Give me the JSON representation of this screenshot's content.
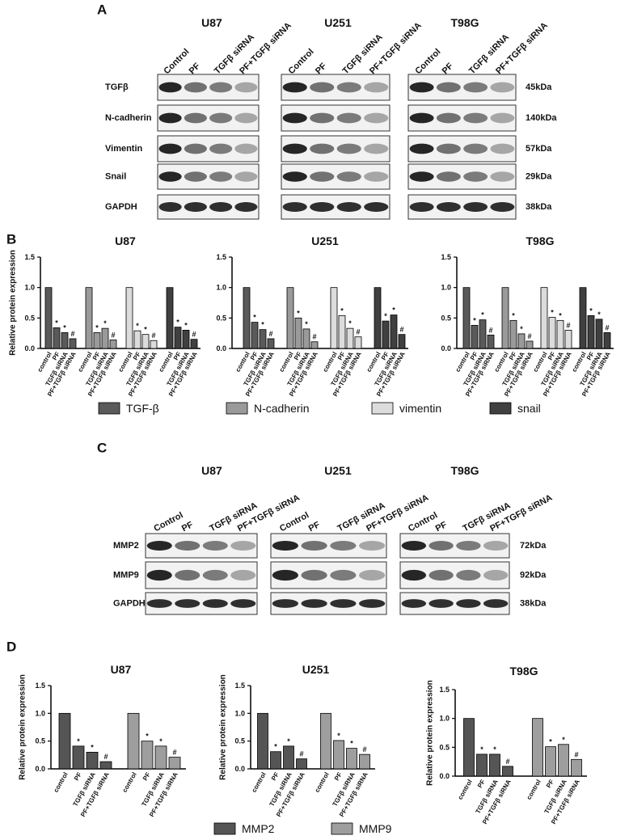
{
  "panel_labels": [
    "A",
    "B",
    "C",
    "D"
  ],
  "blots": [
    {
      "cell_lines": [
        "U87",
        "U251",
        "T98G"
      ],
      "lanes": [
        "Control",
        "PF",
        "TGFβ siRNA",
        "PF+TGFβ siRNA"
      ],
      "rows": [
        {
          "protein": "TGFβ",
          "size": "45kDa"
        },
        {
          "protein": "N-cadherin",
          "size": "140kDa"
        },
        {
          "protein": "Vimentin",
          "size": "57kDa"
        },
        {
          "protein": "Snail",
          "size": "29kDa"
        },
        {
          "protein": "GAPDH",
          "size": "38kDa"
        }
      ]
    },
    {
      "cell_lines": [
        "U87",
        "U251",
        "T98G"
      ],
      "lanes": [
        "Control",
        "PF",
        "TGFβ siRNA",
        "PF+TGFβ siRNA"
      ],
      "rows": [
        {
          "protein": "MMP2",
          "size": "72kDa"
        },
        {
          "protein": "MMP9",
          "size": "92kDa"
        },
        {
          "protein": "GAPDH",
          "size": "38kDa"
        }
      ]
    }
  ],
  "chart_data": [
    {
      "type": "bar",
      "title": "U87",
      "y_label": "Relative protein expression",
      "categories": [
        "control",
        "PF",
        "TGFβ siRNA",
        "PF+TGFβ siRNA"
      ],
      "series": [
        {
          "name": "TGF-β",
          "color": "#5a5a5a",
          "values": [
            1.0,
            0.34,
            0.26,
            0.16
          ],
          "markers": [
            null,
            "*",
            "*",
            "#"
          ]
        },
        {
          "name": "N-cadherin",
          "color": "#9a9a9a",
          "values": [
            1.0,
            0.26,
            0.33,
            0.14
          ],
          "markers": [
            null,
            "*",
            "*",
            "#"
          ]
        },
        {
          "name": "vimentin",
          "color": "#dcdcdc",
          "values": [
            1.0,
            0.29,
            0.23,
            0.13
          ],
          "markers": [
            null,
            "*",
            "*",
            "#"
          ]
        },
        {
          "name": "snail",
          "color": "#404040",
          "values": [
            1.0,
            0.35,
            0.3,
            0.15
          ],
          "markers": [
            null,
            "*",
            "*",
            "#"
          ]
        }
      ],
      "ylim": [
        0,
        1.5
      ],
      "yticks": [
        {
          "value": 0,
          "label": "0.0"
        },
        0.5,
        {
          "value": 1,
          "label": "1.0"
        },
        1.5
      ]
    },
    {
      "type": "bar",
      "title": "U251",
      "categories": [
        "control",
        "PF",
        "TGFβ siRNA",
        "PF+TGFβ siRNA"
      ],
      "series": [
        {
          "name": "TGF-β",
          "color": "#5a5a5a",
          "values": [
            1.0,
            0.43,
            0.31,
            0.16
          ],
          "markers": [
            null,
            "*",
            "*",
            "#"
          ]
        },
        {
          "name": "N-cadherin",
          "color": "#9a9a9a",
          "values": [
            1.0,
            0.5,
            0.32,
            0.11
          ],
          "markers": [
            null,
            "*",
            "*",
            "#"
          ]
        },
        {
          "name": "vimentin",
          "color": "#dcdcdc",
          "values": [
            1.0,
            0.54,
            0.33,
            0.19
          ],
          "markers": [
            null,
            "*",
            "*",
            "#"
          ]
        },
        {
          "name": "snail",
          "color": "#404040",
          "values": [
            1.0,
            0.45,
            0.55,
            0.23
          ],
          "markers": [
            null,
            "*",
            "*",
            "#"
          ]
        }
      ],
      "ylim": [
        0,
        1.5
      ],
      "yticks": [
        {
          "value": 0,
          "label": "0.0"
        },
        0.5,
        {
          "value": 1,
          "label": "1.0"
        },
        1.5
      ]
    },
    {
      "type": "bar",
      "title": "T98G",
      "categories": [
        "control",
        "PF",
        "TGFβ siRNA",
        "PF+TGFβ siRNA"
      ],
      "series": [
        {
          "name": "TGF-β",
          "color": "#5a5a5a",
          "values": [
            1.0,
            0.38,
            0.47,
            0.22
          ],
          "markers": [
            null,
            "*",
            "*",
            "#"
          ]
        },
        {
          "name": "N-cadherin",
          "color": "#9a9a9a",
          "values": [
            1.0,
            0.46,
            0.24,
            0.12
          ],
          "markers": [
            null,
            "*",
            "*",
            "#"
          ]
        },
        {
          "name": "vimentin",
          "color": "#dcdcdc",
          "values": [
            1.0,
            0.51,
            0.46,
            0.3
          ],
          "markers": [
            null,
            "*",
            "*",
            "#"
          ]
        },
        {
          "name": "snail",
          "color": "#404040",
          "values": [
            1.0,
            0.54,
            0.48,
            0.26
          ],
          "markers": [
            null,
            "*",
            "*",
            "#"
          ]
        }
      ],
      "ylim": [
        0,
        1.5
      ],
      "yticks": [
        {
          "value": 0,
          "label": "0.0"
        },
        0.5,
        {
          "value": 1,
          "label": "1.0"
        },
        1.5
      ]
    },
    {
      "type": "bar",
      "title": "U87",
      "y_label": "Relative protein expression",
      "categories": [
        "control",
        "PF",
        "TGFβ siRNA",
        "PF+TGFβ siRNA"
      ],
      "series": [
        {
          "name": "MMP2",
          "color": "#555555",
          "values": [
            1.0,
            0.41,
            0.3,
            0.13
          ],
          "markers": [
            null,
            "*",
            "*",
            "#"
          ]
        },
        {
          "name": "MMP9",
          "color": "#9e9e9e",
          "values": [
            1.0,
            0.5,
            0.41,
            0.21
          ],
          "markers": [
            null,
            "*",
            "*",
            "#"
          ]
        }
      ],
      "ylim": [
        0,
        1.5
      ],
      "yticks": [
        {
          "value": 0,
          "label": "0.0"
        },
        0.5,
        {
          "value": 1,
          "label": "1.0"
        },
        1.5
      ]
    },
    {
      "type": "bar",
      "title": "U251",
      "y_label": "Relative protein expression",
      "categories": [
        "control",
        "PF",
        "TGFβ siRNA",
        "PF+TGFβ siRNA"
      ],
      "series": [
        {
          "name": "MMP2",
          "color": "#555555",
          "values": [
            1.0,
            0.31,
            0.41,
            0.18
          ],
          "markers": [
            null,
            "*",
            "*",
            "#"
          ]
        },
        {
          "name": "MMP9",
          "color": "#9e9e9e",
          "values": [
            1.0,
            0.51,
            0.37,
            0.26
          ],
          "markers": [
            null,
            "*",
            "*",
            "#"
          ]
        }
      ],
      "ylim": [
        0,
        1.5
      ],
      "yticks": [
        {
          "value": 0,
          "label": "0.0"
        },
        0.5,
        {
          "value": 1,
          "label": "1.0"
        },
        1.5
      ]
    },
    {
      "type": "bar",
      "title": "T98G",
      "y_label": "Relative protein expression",
      "categories": [
        "control",
        "PF",
        "TGFβ siRNA",
        "PF+TGFβ siRNA"
      ],
      "series": [
        {
          "name": "MMP2",
          "color": "#555555",
          "values": [
            1.0,
            0.38,
            0.38,
            0.17
          ],
          "markers": [
            null,
            "*",
            "*",
            "#"
          ]
        },
        {
          "name": "MMP9",
          "color": "#9e9e9e",
          "values": [
            1.0,
            0.51,
            0.55,
            0.29
          ],
          "markers": [
            null,
            "*",
            "*",
            "#"
          ]
        }
      ],
      "ylim": [
        0,
        1.5
      ],
      "yticks": [
        {
          "value": 0,
          "label": "0.0"
        },
        0.5,
        {
          "value": 1,
          "label": "1.0"
        },
        1.5
      ]
    }
  ]
}
